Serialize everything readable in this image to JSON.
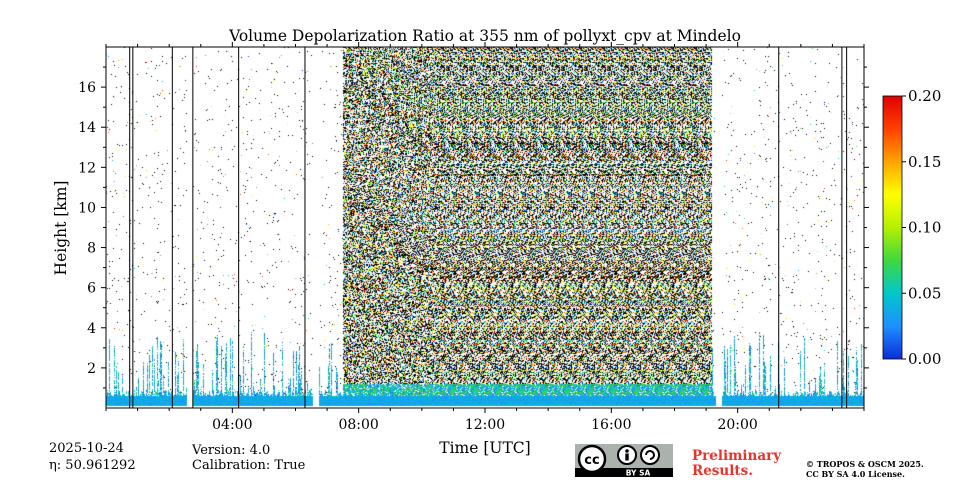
{
  "chart_data": {
    "type": "heatmap",
    "title": "Volume Depolarization Ratio at 355 nm of pollyxt_cpv at Mindelo",
    "xlabel": "Time [UTC]",
    "ylabel": "Height [km]",
    "xlim_hours": [
      0,
      24
    ],
    "ylim_km": [
      0,
      18
    ],
    "x_ticks": [
      {
        "value": 4,
        "label": "04:00"
      },
      {
        "value": 8,
        "label": "08:00"
      },
      {
        "value": 12,
        "label": "12:00"
      },
      {
        "value": 16,
        "label": "16:00"
      },
      {
        "value": 20,
        "label": "20:00"
      }
    ],
    "y_ticks": [
      {
        "value": 2,
        "label": "2"
      },
      {
        "value": 4,
        "label": "4"
      },
      {
        "value": 6,
        "label": "6"
      },
      {
        "value": 8,
        "label": "8"
      },
      {
        "value": 10,
        "label": "10"
      },
      {
        "value": 12,
        "label": "12"
      },
      {
        "value": 14,
        "label": "14"
      },
      {
        "value": 16,
        "label": "16"
      }
    ],
    "colorbar": {
      "range": [
        0.0,
        0.2
      ],
      "ticks": [
        {
          "value": 0.0,
          "label": "0.00"
        },
        {
          "value": 0.05,
          "label": "0.05"
        },
        {
          "value": 0.1,
          "label": "0.10"
        },
        {
          "value": 0.15,
          "label": "0.15"
        },
        {
          "value": 0.2,
          "label": "0.20"
        }
      ],
      "colormap": [
        "#0a2ed8",
        "#1e90ff",
        "#00c8c8",
        "#3fd83f",
        "#b4f000",
        "#ffff00",
        "#ffa500",
        "#ff4000",
        "#e00000"
      ]
    },
    "noisy_daylight_period_hours": [
      7.5,
      19.2
    ],
    "no_data_gaps_hours": [
      [
        2.55,
        2.75
      ],
      [
        6.55,
        6.75
      ],
      [
        19.3,
        19.5
      ]
    ],
    "vertical_marker_lines_hours": [
      0.75,
      0.85,
      2.1,
      2.75,
      4.2,
      6.3,
      21.3,
      23.3,
      23.45
    ]
  },
  "footer": {
    "date": "2025-10-24",
    "eta": "η: 50.961292",
    "version": "Version: 4.0",
    "calibration": "Calibration: True",
    "preliminary_line1": "Preliminary",
    "preliminary_line2": "Results.",
    "license_line1": "© TROPOS & OSCM 2025.",
    "license_line2": "CC BY SA 4.0 License.",
    "cc_badge_text": "BY   SA"
  }
}
